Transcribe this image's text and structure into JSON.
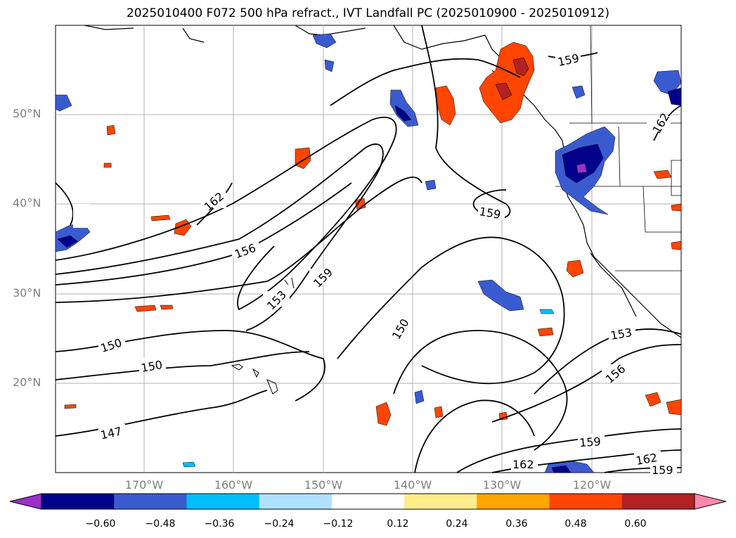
{
  "title": "2025010400 F072 500 hPa refract., IVT Landfall PC (2025010900 - 2025010912)",
  "lat_labels": [
    "50°N",
    "40°N",
    "30°N",
    "20°N"
  ],
  "lon_labels": [
    "170°W",
    "160°W",
    "150°W",
    "140°W",
    "130°W",
    "120°W"
  ],
  "contour_labels": [
    "159",
    "162",
    "162",
    "156",
    "159",
    "153",
    "159",
    "150",
    "150",
    "150",
    "153",
    "156",
    "147",
    "159",
    "162",
    "162",
    "159"
  ],
  "colorbar": {
    "ticks": [
      "−0.60",
      "−0.48",
      "−0.36",
      "−0.24",
      "−0.12",
      "0.12",
      "0.24",
      "0.36",
      "0.48",
      "0.60"
    ],
    "colors": [
      "#9932cc",
      "#00008b",
      "#3a5bd0",
      "#00bfff",
      "#b0e2ff",
      "#ffffff",
      "#ffec8b",
      "#ffa500",
      "#ff4500",
      "#b22222",
      "#ff88aa"
    ]
  }
}
